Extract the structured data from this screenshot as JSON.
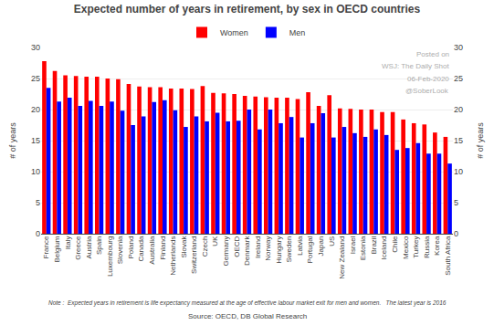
{
  "chart_data": {
    "type": "bar",
    "title": "Expected number of years in retirement, by sex in OECD countries",
    "ylabel": "# of years",
    "y2label": "# of years",
    "categories": [
      "France",
      "Belgium",
      "Italy",
      "Greece",
      "Austria",
      "Spain",
      "Luxembourg",
      "Slovenia",
      "Poland",
      "Canada",
      "Australia",
      "Finland",
      "Netherlands",
      "Slovak",
      "Switzerland",
      "Czech",
      "UK",
      "Germany",
      "OECD",
      "Denmark",
      "Ireland",
      "Norway",
      "Hungary",
      "Sweden",
      "Latvia",
      "Portugal",
      "Japan",
      "US",
      "New Zealand",
      "Israel",
      "Estonia",
      "Brazil",
      "Iceland",
      "Chile",
      "Mexico",
      "Turkey",
      "Russia",
      "Korea",
      "South Africa"
    ],
    "series": [
      {
        "name": "Women",
        "color": "#FF0000",
        "values": [
          27.8,
          26.2,
          25.5,
          25.4,
          25.3,
          25.3,
          25.0,
          24.9,
          24.1,
          23.7,
          23.6,
          23.6,
          23.4,
          23.4,
          23.3,
          23.8,
          22.7,
          22.6,
          22.5,
          22.2,
          22.1,
          22.0,
          21.9,
          21.9,
          21.7,
          22.8,
          20.6,
          22.3,
          20.2,
          20.1,
          20.0,
          20.0,
          19.6,
          19.6,
          18.4,
          17.8,
          17.6,
          16.3,
          15.6
        ]
      },
      {
        "name": "Men",
        "color": "#0000FF",
        "values": [
          23.5,
          21.3,
          21.9,
          20.6,
          21.4,
          20.6,
          21.3,
          19.8,
          17.5,
          18.9,
          21.2,
          21.5,
          19.9,
          17.2,
          18.9,
          18.1,
          19.5,
          18.1,
          18.2,
          20.0,
          16.8,
          20.0,
          17.8,
          18.8,
          15.5,
          17.8,
          19.4,
          15.5,
          17.2,
          16.2,
          15.6,
          16.8,
          15.9,
          13.5,
          13.8,
          14.6,
          12.9,
          12.9,
          11.3
        ]
      }
    ],
    "ylim": [
      0,
      30
    ],
    "yticks": [
      0,
      5,
      10,
      15,
      20,
      25,
      30
    ],
    "y2lim": [
      0,
      30
    ],
    "y2ticks": [
      0,
      5,
      10,
      15,
      20,
      25,
      30
    ],
    "grid": true,
    "legend": "top",
    "annotations": [
      "Posted on",
      "WSJ: The Daily Shot",
      "06-Feb-2020",
      "@SoberLook"
    ],
    "note": "Note :  Expected years in retirement is life expectancy measured at the age of effective labour market exit for men and women.   The latest year is 2016",
    "source": "Source: OECD, DB Global Research"
  }
}
